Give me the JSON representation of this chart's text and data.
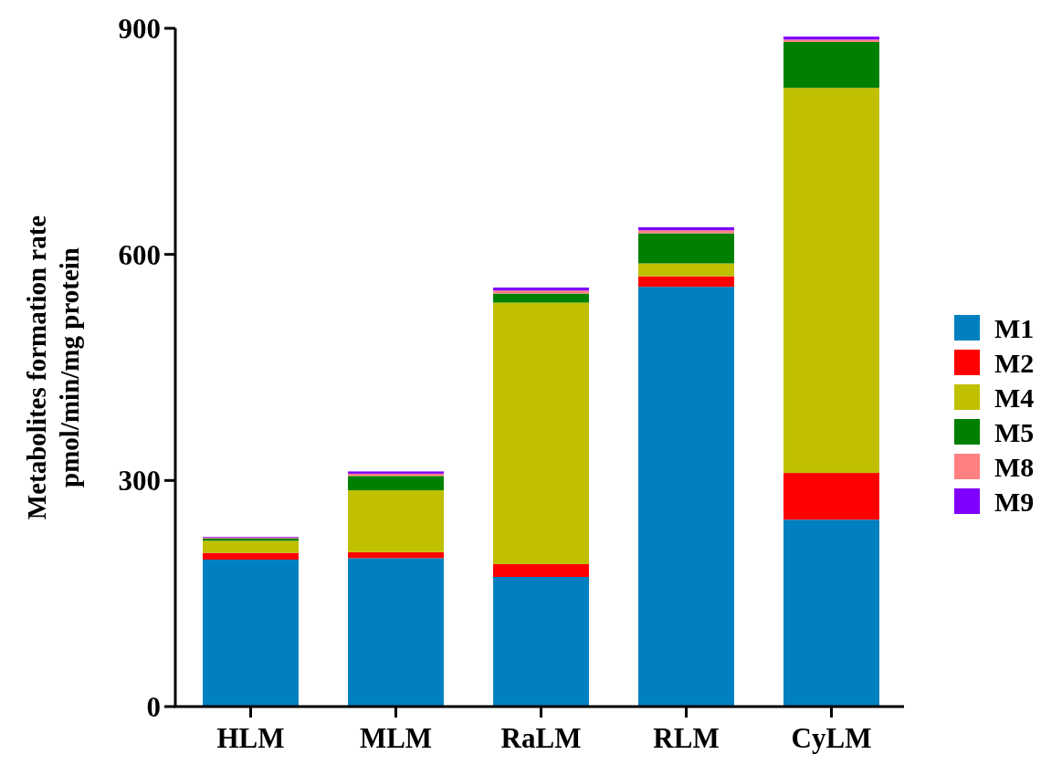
{
  "chart_data": {
    "type": "bar",
    "stacked": true,
    "ylabel": "Metabolites formation rate\npmol/min/mg protein",
    "categories": [
      "HLM",
      "MLM",
      "RaLM",
      "RLM",
      "CyLM"
    ],
    "ylim": [
      0,
      900
    ],
    "yticks": [
      0,
      300,
      600,
      900
    ],
    "legend": "right",
    "grid": false,
    "series": [
      {
        "name": "M1",
        "color": "#0080c0",
        "values": [
          195,
          197,
          172,
          557,
          248
        ]
      },
      {
        "name": "M2",
        "color": "#ff0000",
        "values": [
          9,
          8,
          17,
          14,
          62
        ]
      },
      {
        "name": "M4",
        "color": "#c0c000",
        "values": [
          16,
          82,
          347,
          17,
          511
        ]
      },
      {
        "name": "M5",
        "color": "#008000",
        "values": [
          3,
          19,
          12,
          40,
          61
        ]
      },
      {
        "name": "M8",
        "color": "#ff8080",
        "values": [
          1,
          3,
          4,
          4,
          3
        ]
      },
      {
        "name": "M9",
        "color": "#8000ff",
        "values": [
          1,
          3,
          4,
          4,
          4
        ]
      }
    ]
  }
}
